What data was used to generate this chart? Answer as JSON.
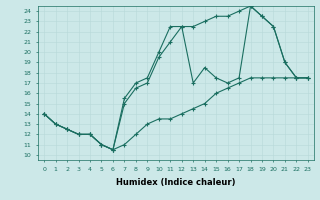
{
  "xlabel": "Humidex (Indice chaleur)",
  "bg_color": "#cce8e8",
  "line_color": "#1a6e60",
  "xlim": [
    -0.5,
    23.5
  ],
  "ylim": [
    9.5,
    24.5
  ],
  "yticks": [
    10,
    11,
    12,
    13,
    14,
    15,
    16,
    17,
    18,
    19,
    20,
    21,
    22,
    23,
    24
  ],
  "xticks": [
    0,
    1,
    2,
    3,
    4,
    5,
    6,
    7,
    8,
    9,
    10,
    11,
    12,
    13,
    14,
    15,
    16,
    17,
    18,
    19,
    20,
    21,
    22,
    23
  ],
  "line1_x": [
    0,
    1,
    2,
    3,
    4,
    5,
    6,
    7,
    8,
    9,
    10,
    11,
    12,
    13,
    14,
    15,
    16,
    17,
    18,
    19,
    20,
    21,
    22,
    23
  ],
  "line1_y": [
    14,
    13,
    12.5,
    12,
    12,
    11,
    10.5,
    11,
    12,
    13,
    13.5,
    13.5,
    14,
    14.5,
    15,
    16,
    16.5,
    17,
    17.5,
    17.5,
    17.5,
    17.5,
    17.5,
    17.5
  ],
  "line2_x": [
    0,
    1,
    2,
    3,
    4,
    5,
    6,
    7,
    8,
    9,
    10,
    11,
    12,
    13,
    14,
    15,
    16,
    17,
    18,
    19,
    20,
    21,
    22,
    23
  ],
  "line2_y": [
    14,
    13,
    12.5,
    12,
    12,
    11,
    10.5,
    15,
    16.5,
    17,
    19.5,
    21,
    22.5,
    22.5,
    23,
    23.5,
    23.5,
    24,
    24.5,
    23.5,
    22.5,
    19,
    17.5,
    17.5
  ],
  "line3_x": [
    0,
    1,
    2,
    3,
    4,
    5,
    6,
    7,
    8,
    9,
    10,
    11,
    12,
    13,
    14,
    15,
    16,
    17,
    18,
    19,
    20,
    21,
    22,
    23
  ],
  "line3_y": [
    14,
    13,
    12.5,
    12,
    12,
    11,
    10.5,
    15.5,
    17,
    17.5,
    20,
    22.5,
    22.5,
    17,
    18.5,
    17.5,
    17,
    17.5,
    24.5,
    23.5,
    22.5,
    19,
    17.5,
    17.5
  ]
}
